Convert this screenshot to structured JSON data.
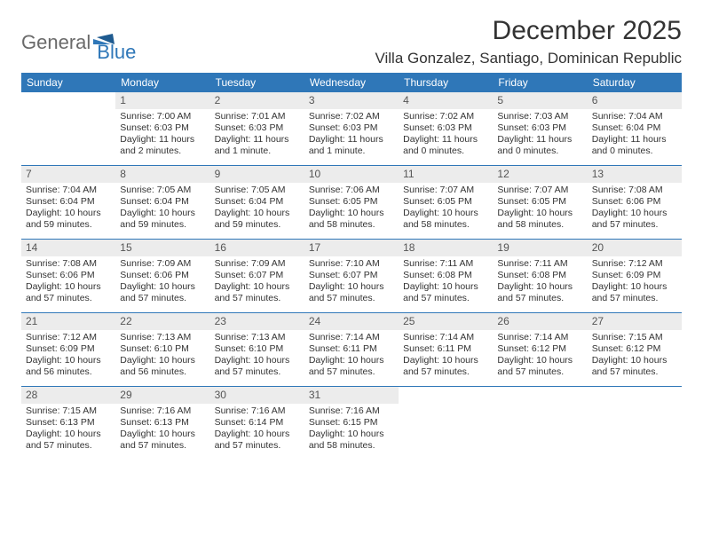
{
  "logo": {
    "part1": "General",
    "part2": "Blue"
  },
  "title": "December 2025",
  "location": "Villa Gonzalez, Santiago, Dominican Republic",
  "colors": {
    "header_bg": "#2f77b8",
    "header_fg": "#ffffff",
    "daynum_bg": "#ececec",
    "daynum_fg": "#555555",
    "rule": "#2f77b8",
    "text": "#333333",
    "logo_gray": "#6a6a6a",
    "logo_blue": "#2f77b8"
  },
  "typography": {
    "title_fontsize": 30,
    "location_fontsize": 17,
    "dow_fontsize": 12,
    "daynum_fontsize": 12,
    "cell_fontsize": 10.5
  },
  "dow": [
    "Sunday",
    "Monday",
    "Tuesday",
    "Wednesday",
    "Thursday",
    "Friday",
    "Saturday"
  ],
  "weeks": [
    [
      {
        "n": "",
        "sr": "",
        "ss": "",
        "dl": ""
      },
      {
        "n": "1",
        "sr": "Sunrise: 7:00 AM",
        "ss": "Sunset: 6:03 PM",
        "dl": "Daylight: 11 hours and 2 minutes."
      },
      {
        "n": "2",
        "sr": "Sunrise: 7:01 AM",
        "ss": "Sunset: 6:03 PM",
        "dl": "Daylight: 11 hours and 1 minute."
      },
      {
        "n": "3",
        "sr": "Sunrise: 7:02 AM",
        "ss": "Sunset: 6:03 PM",
        "dl": "Daylight: 11 hours and 1 minute."
      },
      {
        "n": "4",
        "sr": "Sunrise: 7:02 AM",
        "ss": "Sunset: 6:03 PM",
        "dl": "Daylight: 11 hours and 0 minutes."
      },
      {
        "n": "5",
        "sr": "Sunrise: 7:03 AM",
        "ss": "Sunset: 6:03 PM",
        "dl": "Daylight: 11 hours and 0 minutes."
      },
      {
        "n": "6",
        "sr": "Sunrise: 7:04 AM",
        "ss": "Sunset: 6:04 PM",
        "dl": "Daylight: 11 hours and 0 minutes."
      }
    ],
    [
      {
        "n": "7",
        "sr": "Sunrise: 7:04 AM",
        "ss": "Sunset: 6:04 PM",
        "dl": "Daylight: 10 hours and 59 minutes."
      },
      {
        "n": "8",
        "sr": "Sunrise: 7:05 AM",
        "ss": "Sunset: 6:04 PM",
        "dl": "Daylight: 10 hours and 59 minutes."
      },
      {
        "n": "9",
        "sr": "Sunrise: 7:05 AM",
        "ss": "Sunset: 6:04 PM",
        "dl": "Daylight: 10 hours and 59 minutes."
      },
      {
        "n": "10",
        "sr": "Sunrise: 7:06 AM",
        "ss": "Sunset: 6:05 PM",
        "dl": "Daylight: 10 hours and 58 minutes."
      },
      {
        "n": "11",
        "sr": "Sunrise: 7:07 AM",
        "ss": "Sunset: 6:05 PM",
        "dl": "Daylight: 10 hours and 58 minutes."
      },
      {
        "n": "12",
        "sr": "Sunrise: 7:07 AM",
        "ss": "Sunset: 6:05 PM",
        "dl": "Daylight: 10 hours and 58 minutes."
      },
      {
        "n": "13",
        "sr": "Sunrise: 7:08 AM",
        "ss": "Sunset: 6:06 PM",
        "dl": "Daylight: 10 hours and 57 minutes."
      }
    ],
    [
      {
        "n": "14",
        "sr": "Sunrise: 7:08 AM",
        "ss": "Sunset: 6:06 PM",
        "dl": "Daylight: 10 hours and 57 minutes."
      },
      {
        "n": "15",
        "sr": "Sunrise: 7:09 AM",
        "ss": "Sunset: 6:06 PM",
        "dl": "Daylight: 10 hours and 57 minutes."
      },
      {
        "n": "16",
        "sr": "Sunrise: 7:09 AM",
        "ss": "Sunset: 6:07 PM",
        "dl": "Daylight: 10 hours and 57 minutes."
      },
      {
        "n": "17",
        "sr": "Sunrise: 7:10 AM",
        "ss": "Sunset: 6:07 PM",
        "dl": "Daylight: 10 hours and 57 minutes."
      },
      {
        "n": "18",
        "sr": "Sunrise: 7:11 AM",
        "ss": "Sunset: 6:08 PM",
        "dl": "Daylight: 10 hours and 57 minutes."
      },
      {
        "n": "19",
        "sr": "Sunrise: 7:11 AM",
        "ss": "Sunset: 6:08 PM",
        "dl": "Daylight: 10 hours and 57 minutes."
      },
      {
        "n": "20",
        "sr": "Sunrise: 7:12 AM",
        "ss": "Sunset: 6:09 PM",
        "dl": "Daylight: 10 hours and 57 minutes."
      }
    ],
    [
      {
        "n": "21",
        "sr": "Sunrise: 7:12 AM",
        "ss": "Sunset: 6:09 PM",
        "dl": "Daylight: 10 hours and 56 minutes."
      },
      {
        "n": "22",
        "sr": "Sunrise: 7:13 AM",
        "ss": "Sunset: 6:10 PM",
        "dl": "Daylight: 10 hours and 56 minutes."
      },
      {
        "n": "23",
        "sr": "Sunrise: 7:13 AM",
        "ss": "Sunset: 6:10 PM",
        "dl": "Daylight: 10 hours and 57 minutes."
      },
      {
        "n": "24",
        "sr": "Sunrise: 7:14 AM",
        "ss": "Sunset: 6:11 PM",
        "dl": "Daylight: 10 hours and 57 minutes."
      },
      {
        "n": "25",
        "sr": "Sunrise: 7:14 AM",
        "ss": "Sunset: 6:11 PM",
        "dl": "Daylight: 10 hours and 57 minutes."
      },
      {
        "n": "26",
        "sr": "Sunrise: 7:14 AM",
        "ss": "Sunset: 6:12 PM",
        "dl": "Daylight: 10 hours and 57 minutes."
      },
      {
        "n": "27",
        "sr": "Sunrise: 7:15 AM",
        "ss": "Sunset: 6:12 PM",
        "dl": "Daylight: 10 hours and 57 minutes."
      }
    ],
    [
      {
        "n": "28",
        "sr": "Sunrise: 7:15 AM",
        "ss": "Sunset: 6:13 PM",
        "dl": "Daylight: 10 hours and 57 minutes."
      },
      {
        "n": "29",
        "sr": "Sunrise: 7:16 AM",
        "ss": "Sunset: 6:13 PM",
        "dl": "Daylight: 10 hours and 57 minutes."
      },
      {
        "n": "30",
        "sr": "Sunrise: 7:16 AM",
        "ss": "Sunset: 6:14 PM",
        "dl": "Daylight: 10 hours and 57 minutes."
      },
      {
        "n": "31",
        "sr": "Sunrise: 7:16 AM",
        "ss": "Sunset: 6:15 PM",
        "dl": "Daylight: 10 hours and 58 minutes."
      },
      {
        "n": "",
        "sr": "",
        "ss": "",
        "dl": ""
      },
      {
        "n": "",
        "sr": "",
        "ss": "",
        "dl": ""
      },
      {
        "n": "",
        "sr": "",
        "ss": "",
        "dl": ""
      }
    ]
  ]
}
